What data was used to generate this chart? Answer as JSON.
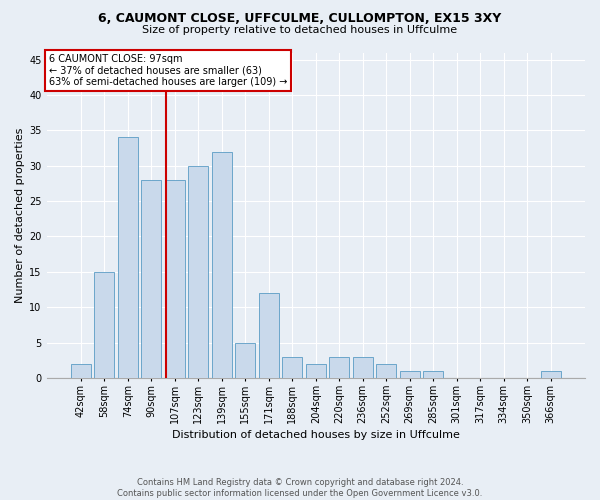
{
  "title1": "6, CAUMONT CLOSE, UFFCULME, CULLOMPTON, EX15 3XY",
  "title2": "Size of property relative to detached houses in Uffculme",
  "xlabel": "Distribution of detached houses by size in Uffculme",
  "ylabel": "Number of detached properties",
  "categories": [
    "42sqm",
    "58sqm",
    "74sqm",
    "90sqm",
    "107sqm",
    "123sqm",
    "139sqm",
    "155sqm",
    "171sqm",
    "188sqm",
    "204sqm",
    "220sqm",
    "236sqm",
    "252sqm",
    "269sqm",
    "285sqm",
    "301sqm",
    "317sqm",
    "334sqm",
    "350sqm",
    "366sqm"
  ],
  "values": [
    2,
    15,
    34,
    28,
    28,
    30,
    32,
    5,
    12,
    3,
    2,
    3,
    3,
    2,
    1,
    1,
    0,
    0,
    0,
    0,
    1
  ],
  "bar_color": "#c9d9eb",
  "bar_edge_color": "#5a9cc5",
  "bar_edge_width": 0.6,
  "vline_x": 3.62,
  "vline_color": "#cc0000",
  "annotation_title": "6 CAUMONT CLOSE: 97sqm",
  "annotation_line1": "← 37% of detached houses are smaller (63)",
  "annotation_line2": "63% of semi-detached houses are larger (109) →",
  "annotation_box_color": "#cc0000",
  "ylim": [
    0,
    46
  ],
  "yticks": [
    0,
    5,
    10,
    15,
    20,
    25,
    30,
    35,
    40,
    45
  ],
  "footer1": "Contains HM Land Registry data © Crown copyright and database right 2024.",
  "footer2": "Contains public sector information licensed under the Open Government Licence v3.0.",
  "bg_color": "#e8eef5",
  "plot_bg_color": "#e8eef5",
  "grid_color": "#ffffff",
  "title1_fontsize": 9,
  "title2_fontsize": 8,
  "ylabel_fontsize": 8,
  "xlabel_fontsize": 8,
  "tick_fontsize": 7,
  "annotation_fontsize": 7,
  "footer_fontsize": 6
}
